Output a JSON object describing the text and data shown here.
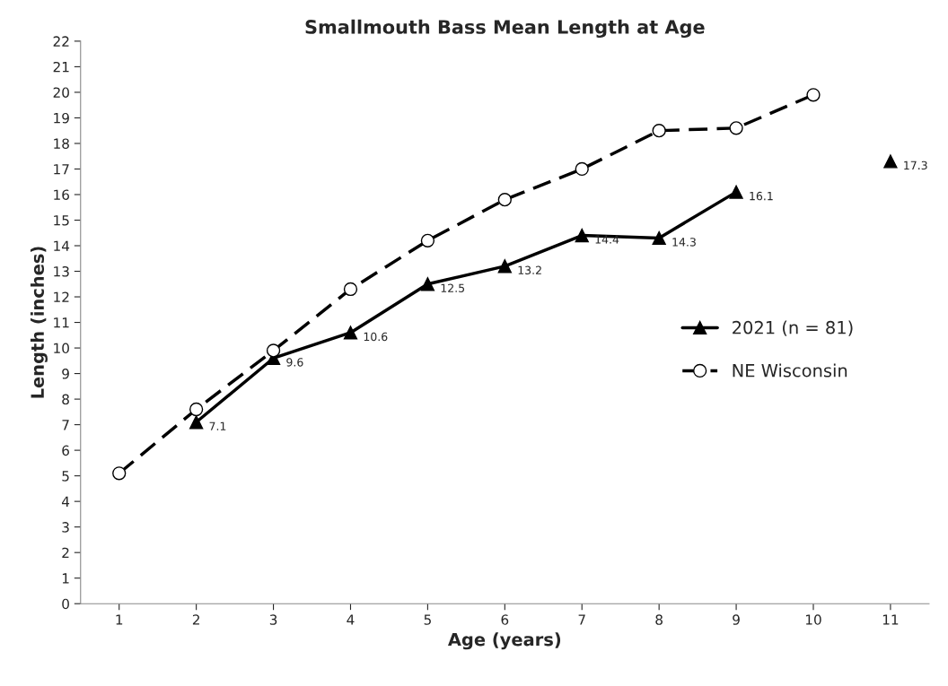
{
  "chart_data": {
    "type": "line",
    "title": "Smallmouth Bass Mean Length at Age",
    "xlabel": "Age (years)",
    "ylabel": "Length (inches)",
    "categories": [
      "1",
      "2",
      "3",
      "4",
      "5",
      "6",
      "7",
      "8",
      "9",
      "10",
      "11"
    ],
    "ylim": [
      0,
      22
    ],
    "yticks": [
      0,
      1,
      2,
      3,
      4,
      5,
      6,
      7,
      8,
      9,
      10,
      11,
      12,
      13,
      14,
      15,
      16,
      17,
      18,
      19,
      20,
      21,
      22
    ],
    "grid": false,
    "legend": "right",
    "series": [
      {
        "name": "2021 (n = 81)",
        "color": "#000000",
        "marker": "triangle",
        "line_style": "solid",
        "values": [
          null,
          7.1,
          9.6,
          10.6,
          12.5,
          13.2,
          14.4,
          14.3,
          16.1,
          null,
          17.3
        ],
        "value_labels": [
          null,
          "7.1",
          "9.6",
          "10.6",
          "12.5",
          "13.2",
          "14.4",
          "14.3",
          "16.1",
          null,
          "17.3"
        ]
      },
      {
        "name": "NE Wisconsin",
        "color": "#000000",
        "marker": "circle",
        "line_style": "dashed",
        "values": [
          5.1,
          7.6,
          9.9,
          12.3,
          14.2,
          15.8,
          17.0,
          18.5,
          18.6,
          19.9,
          null
        ]
      }
    ]
  }
}
